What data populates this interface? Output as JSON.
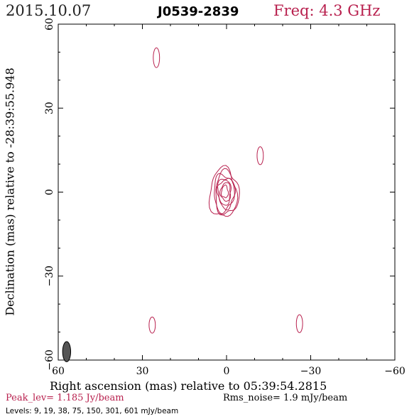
{
  "header": {
    "date": "2015.10.07",
    "source": "J0539-2839",
    "frequency": "Freq: 4.3 GHz"
  },
  "footer": {
    "peak": "Peak_lev=  1.185 Jy/beam",
    "rms": "Rms_noise=  1.9 mJy/beam",
    "levels": "Levels:  9,  19,  38,  75, 150, 301, 601 mJy/beam"
  },
  "colors": {
    "contour": "#b8204e",
    "axis": "#000000",
    "beam": "#555555"
  },
  "chart_data": {
    "type": "contour",
    "xlabel": "Right ascension (mas) relative to 05:39:54.2815",
    "ylabel": "Declination (mas) relative to -28:39:55.948",
    "xlim": [
      60,
      -60
    ],
    "ylim": [
      -60,
      60
    ],
    "xticks": [
      60,
      30,
      0,
      -30,
      -60
    ],
    "yticks": [
      -60,
      -30,
      0,
      30,
      60
    ],
    "xtick_labels": [
      "60",
      "30",
      "0",
      "−30",
      "−60"
    ],
    "ytick_labels": [
      "−60",
      "−30",
      "0",
      "30",
      "60"
    ],
    "contour_levels_mJy": [
      9,
      19,
      38,
      75,
      150,
      301,
      601
    ],
    "peak_Jy_per_beam": 1.185,
    "rms_noise_mJy_per_beam": 1.9,
    "beam": {
      "x": 57,
      "y": -57,
      "major_mas": 4.0,
      "minor_mas": 1.6,
      "pa_deg": 0
    },
    "features": [
      {
        "name": "core",
        "x": 0.5,
        "y": 0.2,
        "rx_mas": 1.0,
        "ry_mas": 2.0
      },
      {
        "name": "blob",
        "x": 25,
        "y": 48,
        "rx_mas": 0.7,
        "ry_mas": 2.2
      },
      {
        "name": "blob",
        "x": -12,
        "y": 13,
        "rx_mas": 0.7,
        "ry_mas": 2.0
      },
      {
        "name": "blob",
        "x": 26.5,
        "y": -47.5,
        "rx_mas": 0.7,
        "ry_mas": 1.8
      },
      {
        "name": "blob",
        "x": -26,
        "y": -47,
        "rx_mas": 0.7,
        "ry_mas": 2.0
      }
    ]
  }
}
